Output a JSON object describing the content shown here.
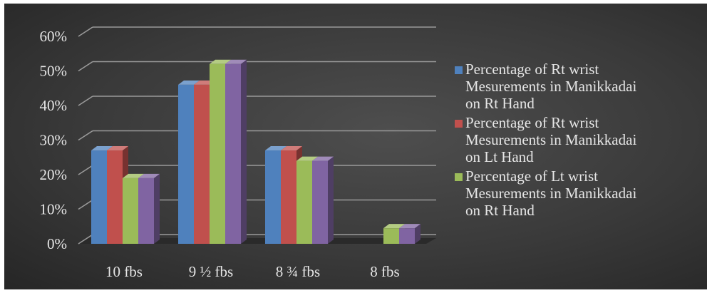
{
  "chart_data": {
    "type": "bar",
    "categories": [
      "10 fbs",
      "9 ½ fbs",
      "8 ¾ fbs",
      "8 fbs"
    ],
    "series": [
      {
        "name": "Percentage of Rt wrist Mesurements in Manikkadai on Rt Hand",
        "color": "#4f81bd",
        "values": [
          27,
          46,
          27,
          0
        ]
      },
      {
        "name": "Percentage of Rt wrist Mesurements in Manikkadai on Lt Hand",
        "color": "#c0504d",
        "values": [
          27,
          46,
          27,
          0
        ]
      },
      {
        "name": "Percentage of  Lt wrist Mesurements in Manikkadai on Rt Hand",
        "color": "#9bbb59",
        "values": [
          19,
          52,
          24,
          4.5
        ]
      },
      {
        "name": "",
        "color": "#8064a2",
        "values": [
          19,
          52,
          24,
          4.5
        ]
      }
    ],
    "y_ticks": [
      "0%",
      "10%",
      "20%",
      "30%",
      "40%",
      "50%",
      "60%"
    ],
    "ylim": [
      0,
      60
    ],
    "grid": true,
    "legend_position": "right",
    "style": "3d-clustered-column",
    "background": "#3a3a3a",
    "gridline_color": "#9a9a9a",
    "text_color": "#e6e6e6"
  },
  "legend": {
    "items": [
      {
        "lines": [
          "Percentage of Rt wrist",
          "Mesurements in Manikkadai",
          "on Rt Hand"
        ]
      },
      {
        "lines": [
          "Percentage of Rt wrist",
          "Mesurements in Manikkadai",
          "on Lt Hand"
        ]
      },
      {
        "lines": [
          "Percentage of  Lt wrist",
          "Mesurements in Manikkadai",
          "on Rt Hand"
        ]
      }
    ]
  }
}
